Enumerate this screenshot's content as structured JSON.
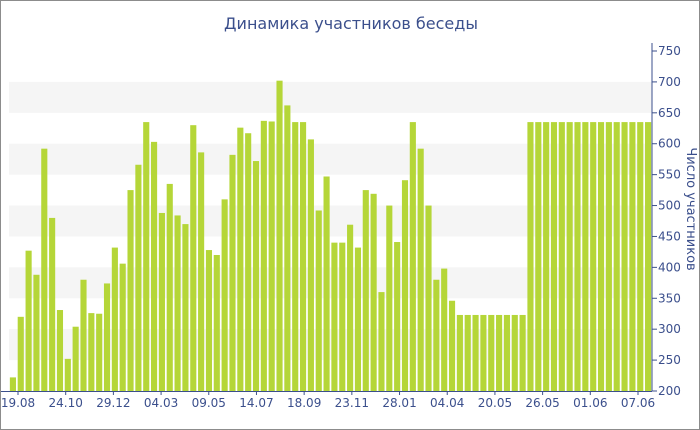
{
  "chart_data": {
    "type": "bar",
    "title": "Динамика участников беседы",
    "xlabel": "",
    "ylabel": "Число участников",
    "ylim": [
      200,
      750
    ],
    "yticks": [
      200,
      250,
      300,
      350,
      400,
      450,
      500,
      550,
      600,
      650,
      700,
      750
    ],
    "y_axis_side": "right",
    "grid": "alternating horizontal bands",
    "x_tick_labels": [
      "19.08",
      "24.10",
      "29.12",
      "04.03",
      "09.05",
      "14.07",
      "18.09",
      "23.11",
      "28.01",
      "04.04",
      "20.05",
      "26.05",
      "01.06",
      "07.06"
    ],
    "colors": {
      "bar": "#b5d638",
      "text": "#3b4f8c",
      "band": "#f5f5f5",
      "axis": "#3b4f8c"
    },
    "values": [
      222,
      320,
      427,
      388,
      592,
      480,
      331,
      252,
      304,
      380,
      326,
      325,
      374,
      432,
      406,
      525,
      566,
      635,
      603,
      488,
      535,
      484,
      470,
      630,
      586,
      428,
      420,
      510,
      582,
      626,
      617,
      572,
      637,
      636,
      702,
      662,
      635,
      635,
      607,
      492,
      547,
      440,
      440,
      469,
      432,
      525,
      519,
      360,
      500,
      441,
      541,
      635,
      592,
      500,
      380,
      398,
      346,
      323,
      323,
      323,
      323,
      323,
      323,
      323,
      323,
      323,
      635,
      635,
      635,
      635,
      635,
      635,
      635,
      635,
      635,
      635,
      635,
      635,
      635,
      635,
      635,
      635
    ]
  }
}
